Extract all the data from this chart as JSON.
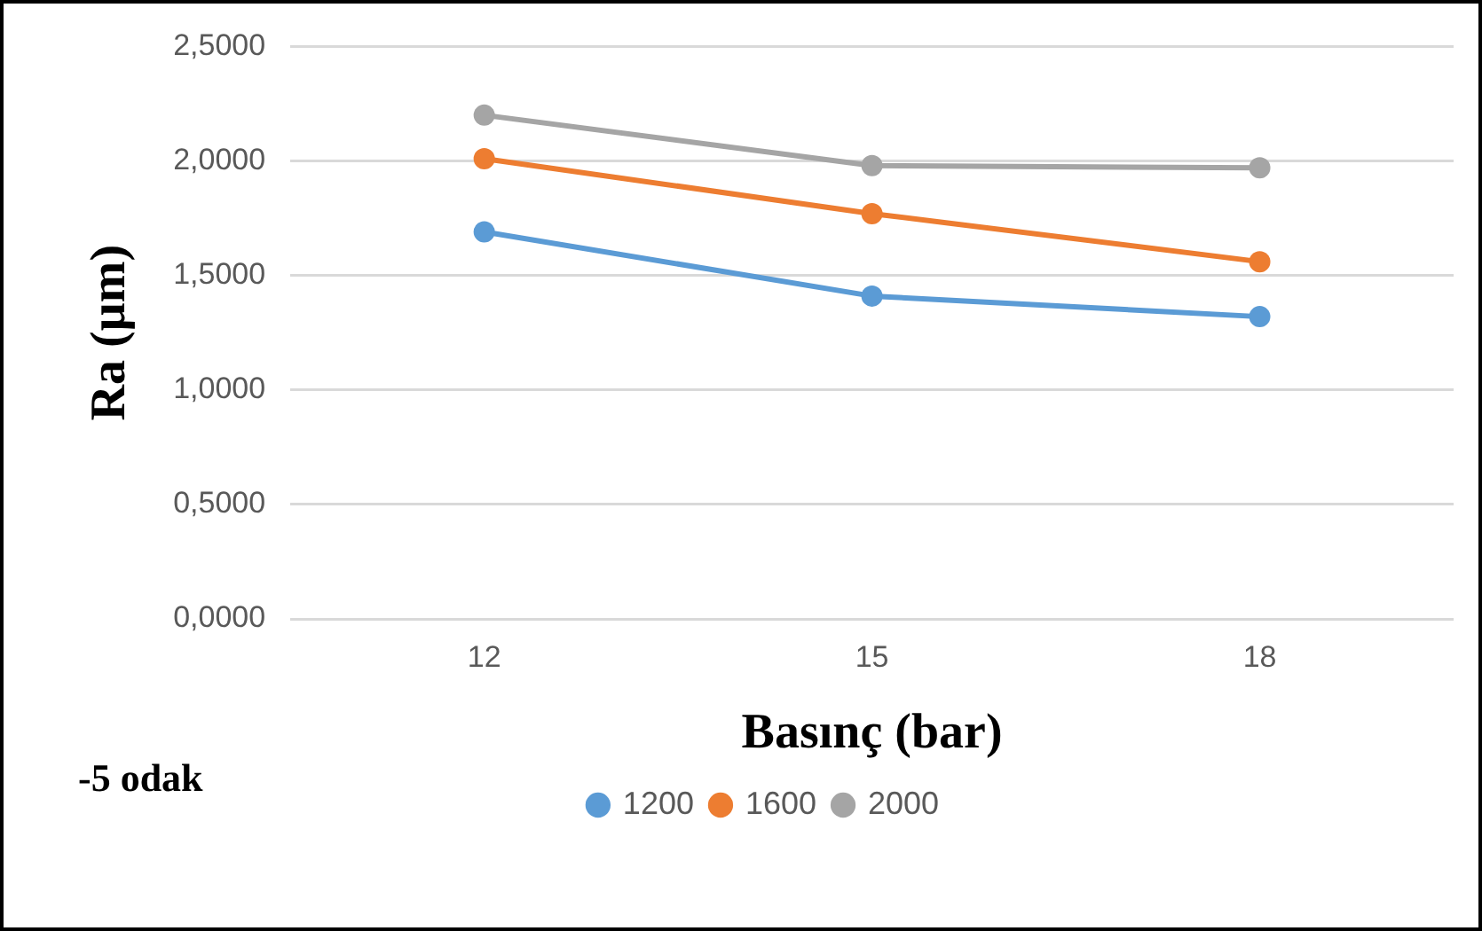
{
  "chart_data": {
    "type": "line",
    "xlabel": "Basınç (bar)",
    "ylabel": "Ra (µm)",
    "categories": [
      "12",
      "15",
      "18"
    ],
    "series": [
      {
        "name": "1200",
        "color": "#5b9bd5",
        "values": [
          1.69,
          1.41,
          1.32
        ]
      },
      {
        "name": "1600",
        "color": "#ed7d31",
        "values": [
          2.01,
          1.77,
          1.56
        ]
      },
      {
        "name": "2000",
        "color": "#a5a5a5",
        "values": [
          2.2,
          1.98,
          1.97
        ]
      }
    ],
    "ylim": [
      0,
      2.5
    ],
    "yticks": [
      {
        "value": 0,
        "label": "0,0000"
      },
      {
        "value": 0.5,
        "label": "0,5000"
      },
      {
        "value": 1,
        "label": "1,0000"
      },
      {
        "value": 1.5,
        "label": "1,5000"
      },
      {
        "value": 2,
        "label": "2,0000"
      },
      {
        "value": 2.5,
        "label": "2,5000"
      }
    ],
    "grid": "y",
    "legend": "bottom",
    "marker": "circle",
    "line_style": "solid",
    "annotations": [
      "-5 odak"
    ]
  }
}
